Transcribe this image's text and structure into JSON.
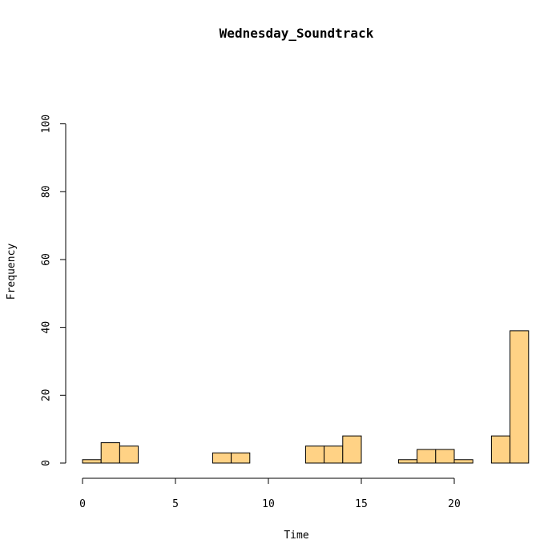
{
  "chart_data": {
    "type": "bar",
    "title": "Wednesday_Soundtrack",
    "xlabel": "Time",
    "ylabel": "Frequency",
    "bin_edges": [
      0,
      1,
      2,
      3,
      4,
      5,
      6,
      7,
      8,
      9,
      10,
      11,
      12,
      13,
      14,
      15,
      16,
      17,
      18,
      19,
      20,
      21,
      22,
      23,
      24
    ],
    "values": [
      1,
      6,
      5,
      0,
      0,
      0,
      0,
      3,
      3,
      0,
      0,
      0,
      5,
      5,
      8,
      0,
      0,
      1,
      4,
      4,
      1,
      0,
      8,
      39
    ],
    "xlim": [
      0,
      24
    ],
    "ylim": [
      0,
      100
    ],
    "xticks": [
      "0",
      "5",
      "10",
      "15",
      "20"
    ],
    "yticks": [
      "0",
      "20",
      "40",
      "60",
      "80",
      "100"
    ],
    "bar_color": "#ffd285",
    "grid": false
  }
}
